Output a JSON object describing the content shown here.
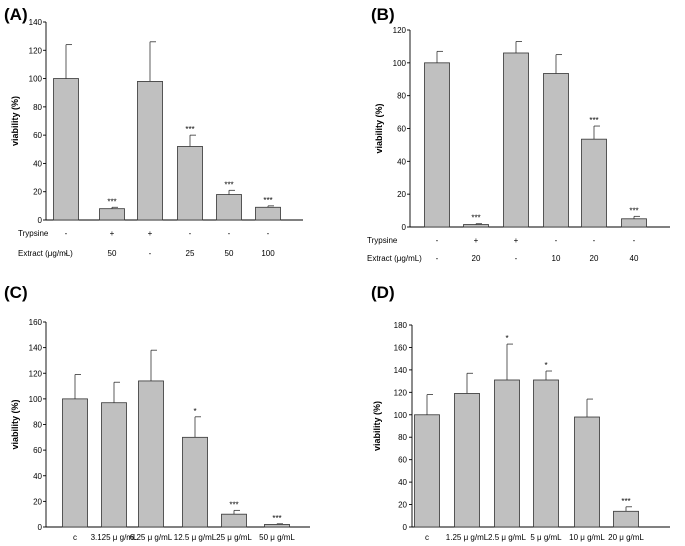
{
  "chart_data": [
    {
      "panel": "(A)",
      "type": "bar",
      "ylabel": "viability (%)",
      "ylim": [
        0,
        140
      ],
      "yticks": [
        0,
        20,
        40,
        60,
        80,
        100,
        120,
        140
      ],
      "rows": [
        {
          "label": "Trypsine",
          "values": [
            "-",
            "+",
            "+",
            "-",
            "-",
            "-"
          ]
        },
        {
          "label": "Extract (μg/mL)",
          "values": [
            "-",
            "50",
            "-",
            "25",
            "50",
            "100"
          ]
        }
      ],
      "values": [
        100,
        8,
        98,
        52,
        18,
        9
      ],
      "errors": [
        24,
        1,
        28,
        8,
        3,
        1
      ],
      "significance": [
        "",
        "***",
        "",
        "***",
        "***",
        "***"
      ]
    },
    {
      "panel": "(B)",
      "type": "bar",
      "ylabel": "viability (%)",
      "ylim": [
        0,
        120
      ],
      "yticks": [
        0,
        20,
        40,
        60,
        80,
        100,
        120
      ],
      "rows": [
        {
          "label": "Trypsine",
          "values": [
            "-",
            "+",
            "+",
            "-",
            "-",
            "-"
          ]
        },
        {
          "label": "Extract (μg/mL)",
          "values": [
            "-",
            "20",
            "-",
            "10",
            "20",
            "40"
          ]
        }
      ],
      "values": [
        100,
        1.5,
        106,
        93.5,
        53.5,
        5
      ],
      "errors": [
        7,
        0.5,
        7,
        11.5,
        8,
        1.5
      ],
      "significance": [
        "",
        "***",
        "",
        "",
        "***",
        "***"
      ]
    },
    {
      "panel": "(C)",
      "type": "bar",
      "ylabel": "viability (%)",
      "ylim": [
        0,
        160
      ],
      "yticks": [
        0,
        20,
        40,
        60,
        80,
        100,
        120,
        140,
        160
      ],
      "categories": [
        "c",
        "3.125 μ g/mL",
        "6.25 μ g/mL",
        "12.5 μ g/mL",
        "25 μ g/mL",
        "50 μ g/mL"
      ],
      "values": [
        100,
        97,
        114,
        70,
        10,
        2
      ],
      "errors": [
        19,
        16,
        24,
        16,
        3,
        0.5
      ],
      "significance": [
        "",
        "",
        "",
        "*",
        "***",
        "***"
      ]
    },
    {
      "panel": "(D)",
      "type": "bar",
      "ylabel": "viability (%)",
      "ylim": [
        0,
        180
      ],
      "yticks": [
        0,
        20,
        40,
        60,
        80,
        100,
        120,
        140,
        160,
        180
      ],
      "categories": [
        "c",
        "1.25 μ g/mL",
        "2.5 μ g/mL",
        "5 μ g/mL",
        "10 μ g/mL",
        "20 μ g/mL"
      ],
      "values": [
        100,
        119,
        131,
        131,
        98,
        14
      ],
      "errors": [
        18,
        18,
        32,
        8,
        16,
        4
      ],
      "significance": [
        "",
        "",
        "*",
        "*",
        "",
        "***"
      ]
    }
  ]
}
